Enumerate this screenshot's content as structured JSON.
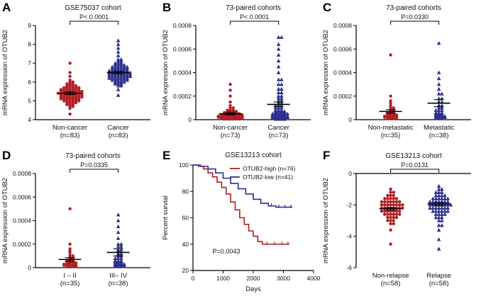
{
  "chart_data": [
    {
      "letter": "A",
      "type": "scatter",
      "title": "GSE75037 cohort",
      "p_label": "P< 0.0001",
      "ylabel": "mRNA  expression of OTUB2",
      "ylim": [
        4,
        9
      ],
      "yticks": [
        4,
        5,
        6,
        7,
        8,
        9
      ],
      "groups": [
        {
          "label": "Non-cancer",
          "n_label": "(n=83)",
          "marker": "circle",
          "color": "#b01f24",
          "mean": 5.4,
          "err": 0.07,
          "points": [
            [
              4.3,
              1
            ],
            [
              4.6,
              1
            ],
            [
              4.7,
              2
            ],
            [
              4.8,
              3
            ],
            [
              4.9,
              4
            ],
            [
              5.0,
              6
            ],
            [
              5.1,
              7
            ],
            [
              5.2,
              8
            ],
            [
              5.3,
              8
            ],
            [
              5.4,
              9
            ],
            [
              5.5,
              8
            ],
            [
              5.6,
              7
            ],
            [
              5.7,
              6
            ],
            [
              5.8,
              4
            ],
            [
              5.9,
              3
            ],
            [
              6.0,
              2
            ],
            [
              6.1,
              1
            ],
            [
              6.3,
              1
            ],
            [
              6.5,
              1
            ],
            [
              7.0,
              1
            ]
          ]
        },
        {
          "label": "Cancer",
          "n_label": "(n=83)",
          "marker": "triangle",
          "color": "#2d2f8e",
          "mean": 6.5,
          "err": 0.07,
          "points": [
            [
              5.3,
              1
            ],
            [
              5.6,
              1
            ],
            [
              5.8,
              2
            ],
            [
              5.9,
              3
            ],
            [
              6.0,
              4
            ],
            [
              6.1,
              6
            ],
            [
              6.2,
              7
            ],
            [
              6.3,
              8
            ],
            [
              6.4,
              8
            ],
            [
              6.5,
              8
            ],
            [
              6.6,
              7
            ],
            [
              6.7,
              6
            ],
            [
              6.8,
              6
            ],
            [
              6.9,
              4
            ],
            [
              7.0,
              3
            ],
            [
              7.1,
              2
            ],
            [
              7.2,
              2
            ],
            [
              7.4,
              1
            ],
            [
              7.6,
              1
            ],
            [
              7.8,
              1
            ],
            [
              8.0,
              1
            ],
            [
              8.2,
              1
            ]
          ]
        }
      ]
    },
    {
      "letter": "B",
      "type": "scatter",
      "title": "73-paired cohorts",
      "p_label": "P< 0.0001",
      "ylabel": "mRNA  expression of OTUB2",
      "ylim": [
        0,
        0.0008
      ],
      "yticks": [
        0,
        0.0002,
        0.0004,
        0.0006,
        0.0008
      ],
      "ytick_labels": [
        "0",
        "0.0002",
        "0.0004",
        "0.0006",
        "0.0008"
      ],
      "groups": [
        {
          "label": "Non-cancer",
          "n_label": "(n=73)",
          "marker": "circle",
          "color": "#b01f24",
          "mean": 5e-05,
          "err": 1e-05,
          "points": [
            [
              5e-06,
              6
            ],
            [
              1e-05,
              8
            ],
            [
              1.5e-05,
              8
            ],
            [
              2e-05,
              9
            ],
            [
              3e-05,
              9
            ],
            [
              4e-05,
              8
            ],
            [
              5e-05,
              6
            ],
            [
              6e-05,
              5
            ],
            [
              7e-05,
              4
            ],
            [
              8e-05,
              3
            ],
            [
              0.0001,
              2
            ],
            [
              0.00012,
              1
            ],
            [
              0.00015,
              1
            ],
            [
              0.0002,
              1
            ],
            [
              0.00025,
              1
            ],
            [
              0.0003,
              1
            ]
          ]
        },
        {
          "label": "Cancer",
          "n_label": "(n=73)",
          "marker": "triangle",
          "color": "#2d2f8e",
          "mean": 0.00013,
          "err": 2e-05,
          "points": [
            [
              5e-06,
              4
            ],
            [
              1e-05,
              5
            ],
            [
              2e-05,
              6
            ],
            [
              3e-05,
              6
            ],
            [
              4e-05,
              5
            ],
            [
              5e-05,
              6
            ],
            [
              6e-05,
              4
            ],
            [
              7e-05,
              4
            ],
            [
              8e-05,
              3
            ],
            [
              0.0001,
              3
            ],
            [
              0.00012,
              3
            ],
            [
              0.00014,
              2
            ],
            [
              0.00016,
              2
            ],
            [
              0.00018,
              2
            ],
            [
              0.0002,
              2
            ],
            [
              0.00023,
              2
            ],
            [
              0.00026,
              2
            ],
            [
              0.0003,
              2
            ],
            [
              0.00034,
              2
            ],
            [
              0.0004,
              1
            ],
            [
              0.00045,
              1
            ],
            [
              0.0005,
              1
            ],
            [
              0.00055,
              1
            ],
            [
              0.0006,
              1
            ],
            [
              0.00064,
              1
            ],
            [
              0.0007,
              2
            ]
          ]
        }
      ]
    },
    {
      "letter": "C",
      "type": "scatter",
      "title": "73-paired cohorts",
      "p_label": "P=0.0330",
      "ylabel": "mRNA  expression of OTUB2",
      "ylim": [
        0,
        0.0008
      ],
      "yticks": [
        0,
        0.0002,
        0.0004,
        0.0006,
        0.0008
      ],
      "ytick_labels": [
        "0",
        "0.0002",
        "0.0004",
        "0.0006",
        "0.0008"
      ],
      "groups": [
        {
          "label": "Non-metastatic",
          "n_label": "(n=35)",
          "marker": "circle",
          "color": "#b01f24",
          "mean": 7e-05,
          "err": 1.5e-05,
          "points": [
            [
              1e-05,
              4
            ],
            [
              2e-05,
              5
            ],
            [
              3e-05,
              5
            ],
            [
              4e-05,
              4
            ],
            [
              5e-05,
              3
            ],
            [
              6e-05,
              3
            ],
            [
              7e-05,
              2
            ],
            [
              8e-05,
              2
            ],
            [
              0.0001,
              2
            ],
            [
              0.00012,
              1
            ],
            [
              0.00014,
              1
            ],
            [
              0.00016,
              1
            ],
            [
              0.0002,
              1
            ],
            [
              0.00055,
              1
            ]
          ]
        },
        {
          "label": "Metastatic",
          "n_label": "(n=38)",
          "marker": "triangle",
          "color": "#2d2f8e",
          "mean": 0.00014,
          "err": 3e-05,
          "points": [
            [
              1e-05,
              3
            ],
            [
              2e-05,
              4
            ],
            [
              3e-05,
              4
            ],
            [
              4e-05,
              3
            ],
            [
              5e-05,
              3
            ],
            [
              6e-05,
              3
            ],
            [
              8e-05,
              3
            ],
            [
              0.0001,
              2
            ],
            [
              0.00012,
              2
            ],
            [
              0.00015,
              2
            ],
            [
              0.00018,
              2
            ],
            [
              0.00022,
              2
            ],
            [
              0.00026,
              1
            ],
            [
              0.0003,
              1
            ],
            [
              0.00035,
              1
            ],
            [
              0.0004,
              1
            ],
            [
              0.00065,
              1
            ]
          ]
        }
      ]
    },
    {
      "letter": "D",
      "type": "scatter",
      "title": "73-paired cohorts",
      "p_label": "P=0.0335",
      "ylabel": "mRNA  expression of OTUB2",
      "ylim": [
        0,
        0.0008
      ],
      "yticks": [
        0,
        0.0002,
        0.0004,
        0.0006,
        0.0008
      ],
      "ytick_labels": [
        "0",
        "0.0002",
        "0.0004",
        "0.0006",
        "0.0008"
      ],
      "groups": [
        {
          "label": "I – II",
          "n_label": "(n=35)",
          "marker": "circle",
          "color": "#b01f24",
          "mean": 7e-05,
          "err": 1.5e-05,
          "points": [
            [
              1e-05,
              4
            ],
            [
              2e-05,
              5
            ],
            [
              3e-05,
              5
            ],
            [
              4e-05,
              4
            ],
            [
              5e-05,
              3
            ],
            [
              6e-05,
              3
            ],
            [
              7e-05,
              2
            ],
            [
              8e-05,
              2
            ],
            [
              0.0001,
              2
            ],
            [
              0.00012,
              1
            ],
            [
              0.00014,
              1
            ],
            [
              0.00016,
              1
            ],
            [
              0.0002,
              1
            ],
            [
              0.0005,
              1
            ]
          ]
        },
        {
          "label": "III– IV",
          "n_label": "(n=38)",
          "marker": "triangle",
          "color": "#2d2f8e",
          "mean": 0.00013,
          "err": 3e-05,
          "points": [
            [
              1e-05,
              3
            ],
            [
              2e-05,
              4
            ],
            [
              3e-05,
              4
            ],
            [
              4e-05,
              3
            ],
            [
              5e-05,
              3
            ],
            [
              6e-05,
              3
            ],
            [
              8e-05,
              3
            ],
            [
              0.0001,
              2
            ],
            [
              0.00012,
              2
            ],
            [
              0.00015,
              2
            ],
            [
              0.00018,
              2
            ],
            [
              0.0002,
              2
            ],
            [
              0.00025,
              1
            ],
            [
              0.0003,
              1
            ],
            [
              0.00035,
              1
            ],
            [
              0.0004,
              1
            ],
            [
              0.00045,
              1
            ]
          ]
        }
      ]
    },
    {
      "letter": "E",
      "type": "km",
      "title": "GSE13213 cohort",
      "xlabel": "Days",
      "ylabel": "Percent survial",
      "p_label": "P=0.0043",
      "p_at": [
        650,
        33
      ],
      "xlim": [
        0,
        4000
      ],
      "xticks": [
        0,
        1000,
        2000,
        3000,
        4000
      ],
      "ylim": [
        20,
        100
      ],
      "yticks": [
        20,
        40,
        60,
        80,
        100
      ],
      "series": [
        {
          "name": "OTUB2-high (n=76)",
          "color": "#b01f24",
          "points": [
            [
              0,
              100
            ],
            [
              180,
              99
            ],
            [
              350,
              97
            ],
            [
              500,
              94
            ],
            [
              650,
              91
            ],
            [
              800,
              87
            ],
            [
              950,
              83
            ],
            [
              1100,
              78
            ],
            [
              1250,
              72
            ],
            [
              1400,
              66
            ],
            [
              1550,
              60
            ],
            [
              1700,
              55
            ],
            [
              1850,
              50
            ],
            [
              2000,
              46
            ],
            [
              2150,
              42
            ],
            [
              2300,
              40
            ],
            [
              3200,
              40
            ]
          ],
          "censors": [
            [
              2450,
              40
            ],
            [
              2700,
              40
            ],
            [
              2950,
              40
            ],
            [
              3150,
              40
            ]
          ]
        },
        {
          "name": "OTUB2-low (n=41)",
          "color": "#2d2f8e",
          "points": [
            [
              0,
              100
            ],
            [
              250,
              99
            ],
            [
              500,
              97
            ],
            [
              750,
              94
            ],
            [
              1000,
              90
            ],
            [
              1250,
              86
            ],
            [
              1500,
              82
            ],
            [
              1750,
              78
            ],
            [
              2000,
              74
            ],
            [
              2250,
              71
            ],
            [
              2500,
              69
            ],
            [
              2750,
              68
            ],
            [
              3300,
              68
            ]
          ],
          "censors": [
            [
              2600,
              69
            ],
            [
              2850,
              68
            ],
            [
              3050,
              68
            ],
            [
              3250,
              68
            ]
          ]
        }
      ]
    },
    {
      "letter": "F",
      "type": "scatter",
      "title": "GSE13213 cohort",
      "p_label": "P=0.0131",
      "ylabel": "mRNA expression of OTUB2",
      "ylim": [
        -6,
        0
      ],
      "yticks": [
        0,
        -2,
        -4,
        -6
      ],
      "ytick_labels": [
        "0",
        "-2",
        "-4",
        "-6"
      ],
      "axis_at_zero": true,
      "groups": [
        {
          "label": "Non-relapse",
          "n_label": "(n=58)",
          "marker": "circle",
          "color": "#b01f24",
          "mean": -2.25,
          "err": 0.08,
          "points": [
            [
              -1.0,
              1
            ],
            [
              -1.2,
              2
            ],
            [
              -1.4,
              3
            ],
            [
              -1.6,
              5
            ],
            [
              -1.8,
              7
            ],
            [
              -2.0,
              8
            ],
            [
              -2.2,
              8
            ],
            [
              -2.4,
              7
            ],
            [
              -2.6,
              6
            ],
            [
              -2.8,
              4
            ],
            [
              -3.0,
              3
            ],
            [
              -3.2,
              2
            ],
            [
              -3.6,
              1
            ],
            [
              -4.5,
              1
            ]
          ]
        },
        {
          "label": "Relapse",
          "n_label": "(n=58)",
          "marker": "triangle",
          "color": "#2d2f8e",
          "mean": -1.95,
          "err": 0.1,
          "points": [
            [
              -0.8,
              1
            ],
            [
              -1.0,
              2
            ],
            [
              -1.2,
              3
            ],
            [
              -1.4,
              4
            ],
            [
              -1.6,
              6
            ],
            [
              -1.8,
              7
            ],
            [
              -2.0,
              8
            ],
            [
              -2.2,
              7
            ],
            [
              -2.4,
              6
            ],
            [
              -2.6,
              4
            ],
            [
              -2.8,
              3
            ],
            [
              -3.0,
              2
            ],
            [
              -3.3,
              2
            ],
            [
              -3.6,
              1
            ],
            [
              -4.2,
              1
            ],
            [
              -4.8,
              1
            ]
          ]
        }
      ]
    }
  ]
}
